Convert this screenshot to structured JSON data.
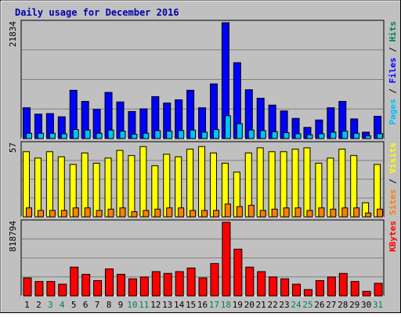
{
  "title": "Daily usage for December 2016",
  "colors": {
    "background": "#c0c0c0",
    "title": "#0000aa",
    "hits": "#00805c",
    "files": "#0000ff",
    "pages": "#00c0ff",
    "visits": "#ffff00",
    "sites": "#ff8000",
    "kbytes": "#ff0000",
    "weekend_label": "#00805c",
    "weekday_label": "#000000",
    "grid": "#808080"
  },
  "chart_data": {
    "type": "bar",
    "categories": [
      "1",
      "2",
      "3",
      "4",
      "5",
      "6",
      "7",
      "8",
      "9",
      "10",
      "11",
      "12",
      "13",
      "14",
      "15",
      "16",
      "17",
      "18",
      "19",
      "20",
      "21",
      "22",
      "23",
      "24",
      "25",
      "26",
      "27",
      "28",
      "29",
      "30",
      "31"
    ],
    "weekend_days": [
      "3",
      "4",
      "10",
      "11",
      "17",
      "18",
      "24",
      "25",
      "31"
    ],
    "panels": [
      {
        "ymax_label": "21834",
        "ymax": 21834,
        "right_label": [
          {
            "text": "Pages",
            "color": "#00c0ff"
          },
          {
            "text": " / ",
            "color": "#000000"
          },
          {
            "text": "Files",
            "color": "#0000ff"
          },
          {
            "text": " / ",
            "color": "#000000"
          },
          {
            "text": "Hits",
            "color": "#00805c"
          }
        ],
        "series": [
          {
            "name": "Hits",
            "color": "#00805c",
            "values": [
              5800,
              4600,
              4700,
              4100,
              9100,
              7000,
              5500,
              8700,
              6900,
              5100,
              5600,
              7900,
              6700,
              7300,
              9100,
              5800,
              10300,
              21834,
              14300,
              9200,
              7600,
              6300,
              5200,
              3800,
              2100,
              3500,
              5800,
              7000,
              3700,
              1200,
              4200
            ]
          },
          {
            "name": "Files",
            "color": "#0000ff",
            "values": [
              5800,
              4600,
              4700,
              4100,
              9100,
              7000,
              5500,
              8700,
              6900,
              5100,
              5600,
              7900,
              6700,
              7300,
              9100,
              5800,
              10300,
              21834,
              14300,
              9200,
              7600,
              6300,
              5200,
              3800,
              2100,
              3500,
              5800,
              7000,
              3700,
              1200,
              4200
            ]
          },
          {
            "name": "Pages",
            "color": "#00c0ff",
            "values": [
              1000,
              1000,
              1000,
              900,
              1700,
              1600,
              1000,
              1600,
              1400,
              800,
              1000,
              1500,
              1400,
              1500,
              1600,
              1200,
              1700,
              4300,
              2800,
              1600,
              1500,
              1300,
              1100,
              900,
              700,
              900,
              1200,
              1400,
              1000,
              500,
              900
            ]
          }
        ]
      },
      {
        "ymax_label": "57",
        "ymax": 57,
        "right_label": [
          {
            "text": "Sites",
            "color": "#ff8000"
          },
          {
            "text": " / ",
            "color": "#000000"
          },
          {
            "text": "Visits",
            "color": "#ffff00"
          }
        ],
        "series": [
          {
            "name": "Visits",
            "color": "#ffff00",
            "values": [
              51,
              46,
              51,
              47,
              41,
              50,
              42,
              46,
              52,
              48,
              55,
              40,
              49,
              47,
              53,
              55,
              50,
              42,
              35,
              50,
              54,
              51,
              51,
              53,
              54,
              42,
              46,
              53,
              48,
              11,
              41
            ]
          },
          {
            "name": "Sites",
            "color": "#ff8000",
            "values": [
              7,
              5,
              5,
              5,
              7,
              7,
              5,
              6,
              7,
              4,
              5,
              6,
              7,
              7,
              5,
              5,
              5,
              10,
              8,
              9,
              5,
              6,
              7,
              7,
              5,
              7,
              6,
              7,
              7,
              3,
              6
            ]
          }
        ]
      },
      {
        "ymax_label": "818794",
        "ymax": 818794,
        "right_label": [
          {
            "text": "KBytes",
            "color": "#ff0000"
          }
        ],
        "series": [
          {
            "name": "KBytes",
            "color": "#ff0000",
            "values": [
              200000,
              160000,
              160000,
              130000,
              320000,
              240000,
              170000,
              300000,
              240000,
              190000,
              210000,
              270000,
              250000,
              270000,
              310000,
              200000,
              360000,
              818794,
              520000,
              320000,
              270000,
              210000,
              190000,
              130000,
              70000,
              170000,
              210000,
              250000,
              160000,
              50000,
              140000
            ]
          }
        ]
      }
    ]
  }
}
